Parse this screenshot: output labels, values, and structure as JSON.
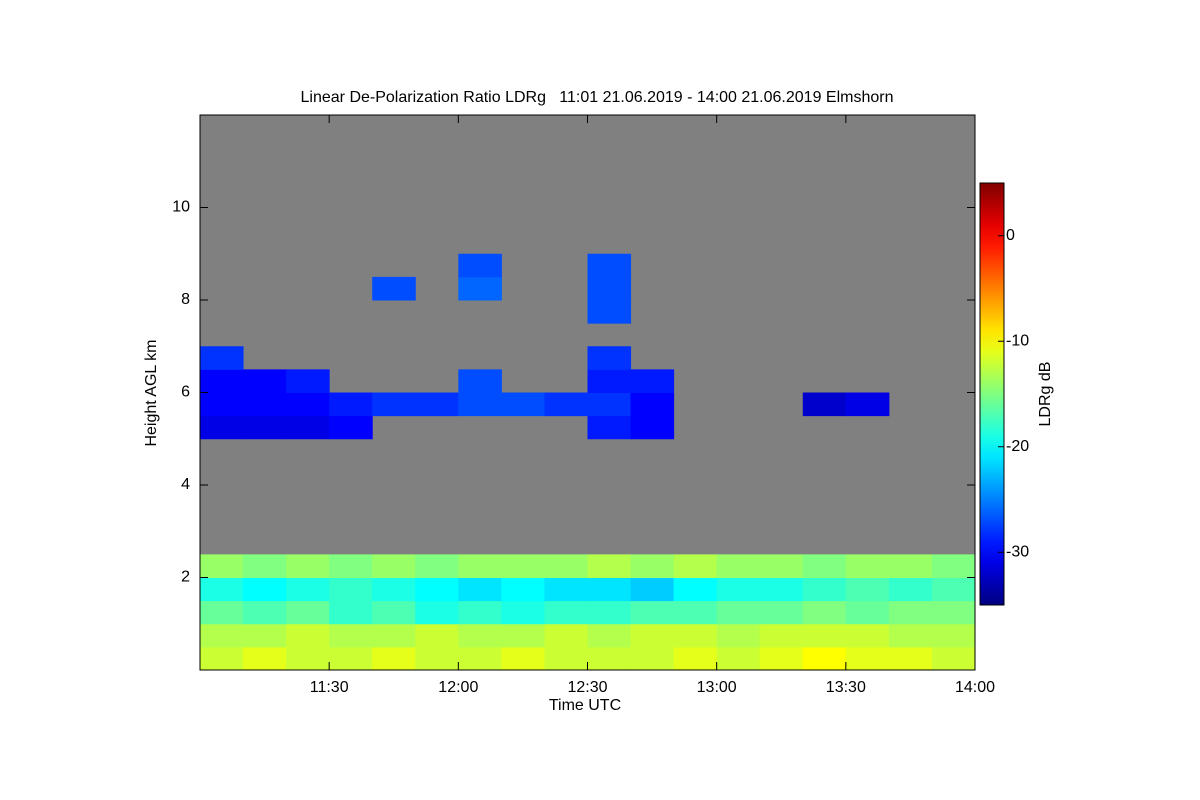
{
  "chart_data": {
    "type": "heatmap",
    "title": "Linear De-Polarization Ratio LDRg   11:01 21.06.2019 - 14:00 21.06.2019 Elmshorn",
    "x_label": "Time UTC",
    "y_label": "Height AGL km",
    "colorbar_label": "LDRg dB",
    "colormap": "jet",
    "background": "#808080",
    "xlim": [
      660,
      840
    ],
    "xticks": [
      {
        "value": 690,
        "label": "11:30"
      },
      {
        "value": 720,
        "label": "12:00"
      },
      {
        "value": 750,
        "label": "12:30"
      },
      {
        "value": 780,
        "label": "13:00"
      },
      {
        "value": 810,
        "label": "13:30"
      },
      {
        "value": 840,
        "label": "14:00"
      }
    ],
    "ylim": [
      0,
      12
    ],
    "yticks": [
      2,
      4,
      6,
      8,
      10
    ],
    "clim": [
      -35,
      5
    ],
    "cticks": [
      0,
      -10,
      -20,
      -30
    ],
    "x_bins": [
      660,
      670,
      680,
      690,
      700,
      710,
      720,
      730,
      740,
      750,
      760,
      770,
      780,
      790,
      800,
      810,
      820,
      830,
      840
    ],
    "y_bins": [
      0,
      0.5,
      1,
      1.5,
      2,
      2.5,
      3,
      3.5,
      4,
      4.5,
      5,
      5.5,
      6,
      6.5,
      7,
      7.5,
      8,
      8.5,
      9
    ],
    "values": [
      [
        -12,
        -11,
        -12,
        -12,
        -11,
        -12,
        -12,
        -11,
        -12,
        -12,
        -12,
        -11,
        -12,
        -11,
        -10,
        -11,
        -11,
        -12
      ],
      [
        -13,
        -13,
        -12,
        -13,
        -13,
        -12,
        -13,
        -13,
        -12,
        -13,
        -12,
        -12,
        -13,
        -12,
        -12,
        -12,
        -13,
        -13
      ],
      [
        -16,
        -17,
        -16,
        -18,
        -17,
        -19,
        -18,
        -19,
        -18,
        -18,
        -17,
        -17,
        -16,
        -16,
        -15,
        -16,
        -15,
        -15
      ],
      [
        -19,
        -20,
        -19,
        -18,
        -19,
        -20,
        -21,
        -20,
        -21,
        -21,
        -22,
        -20,
        -19,
        -19,
        -18,
        -17,
        -18,
        -17
      ],
      [
        -14,
        -15,
        -14,
        -15,
        -14,
        -15,
        -14,
        -14,
        -14,
        -13,
        -14,
        -13,
        -14,
        -14,
        -15,
        -14,
        -14,
        -15
      ],
      [
        null,
        null,
        null,
        null,
        null,
        null,
        null,
        null,
        null,
        null,
        null,
        null,
        null,
        null,
        null,
        null,
        null,
        null
      ],
      [
        null,
        null,
        null,
        null,
        null,
        null,
        null,
        null,
        null,
        null,
        null,
        null,
        null,
        null,
        null,
        null,
        null,
        null
      ],
      [
        null,
        null,
        null,
        null,
        null,
        null,
        null,
        null,
        null,
        null,
        null,
        null,
        null,
        null,
        null,
        null,
        null,
        null
      ],
      [
        null,
        null,
        null,
        null,
        null,
        null,
        null,
        null,
        null,
        null,
        null,
        null,
        null,
        null,
        null,
        null,
        null,
        null
      ],
      [
        null,
        null,
        null,
        null,
        null,
        null,
        null,
        null,
        null,
        null,
        null,
        null,
        null,
        null,
        null,
        null,
        null,
        null
      ],
      [
        -31,
        -31,
        -31,
        -30,
        null,
        null,
        null,
        null,
        null,
        -29,
        -30,
        null,
        null,
        null,
        null,
        null,
        null,
        null
      ],
      [
        -30,
        -30,
        -30,
        -29,
        -28,
        -28,
        -27,
        -27,
        -28,
        -28,
        -30,
        null,
        null,
        null,
        -32,
        -31,
        null,
        null
      ],
      [
        -30,
        -30,
        -29,
        null,
        null,
        null,
        -27,
        null,
        null,
        -29,
        -29,
        null,
        null,
        null,
        null,
        null,
        null,
        null
      ],
      [
        -28,
        null,
        null,
        null,
        null,
        null,
        null,
        null,
        null,
        -28,
        null,
        null,
        null,
        null,
        null,
        null,
        null,
        null
      ],
      [
        null,
        null,
        null,
        null,
        null,
        null,
        null,
        null,
        null,
        null,
        null,
        null,
        null,
        null,
        null,
        null,
        null,
        null
      ],
      [
        null,
        null,
        null,
        null,
        null,
        null,
        null,
        null,
        null,
        -27,
        null,
        null,
        null,
        null,
        null,
        null,
        null,
        null
      ],
      [
        null,
        null,
        null,
        null,
        -27,
        null,
        -26,
        null,
        null,
        -27,
        null,
        null,
        null,
        null,
        null,
        null,
        null,
        null
      ],
      [
        null,
        null,
        null,
        null,
        null,
        null,
        -27,
        null,
        null,
        -27,
        null,
        null,
        null,
        null,
        null,
        null,
        null,
        null
      ]
    ]
  }
}
